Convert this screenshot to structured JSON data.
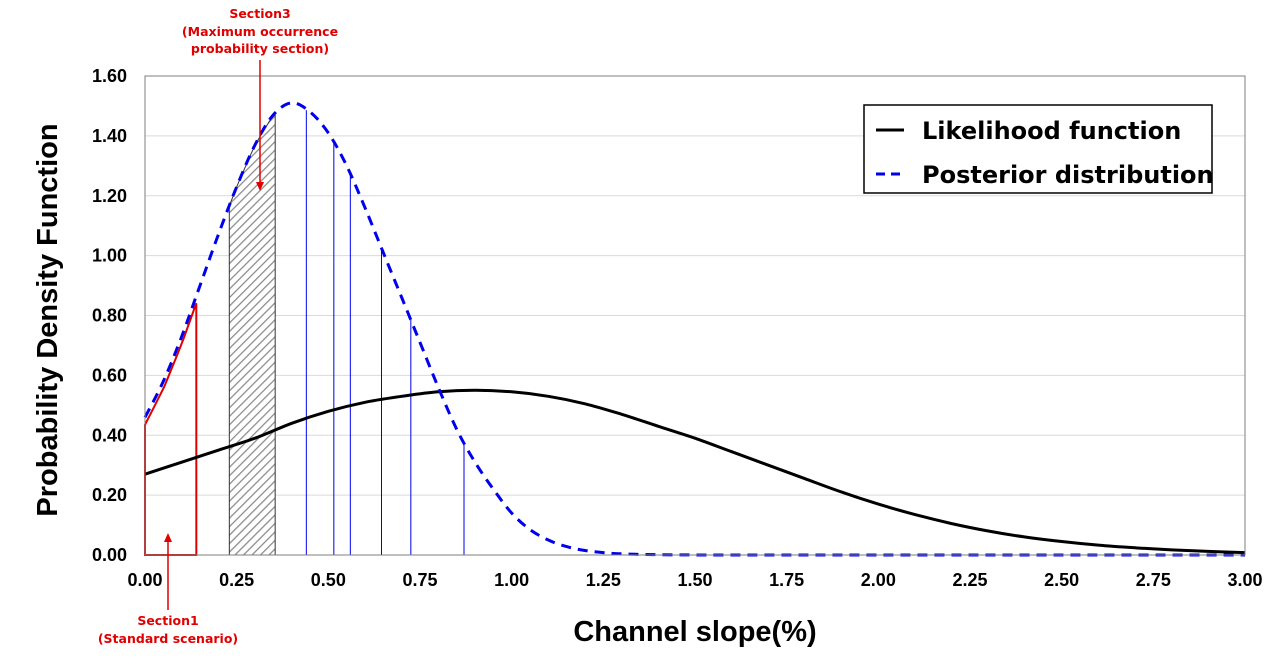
{
  "chart_data": {
    "type": "line",
    "xlabel": "Channel slope(%)",
    "ylabel": "Probability Density Function",
    "xlim": [
      0,
      3.0
    ],
    "ylim": [
      0,
      1.6
    ],
    "x_ticks": [
      "0.00",
      "0.25",
      "0.50",
      "0.75",
      "1.00",
      "1.25",
      "1.50",
      "1.75",
      "2.00",
      "2.25",
      "2.50",
      "2.75",
      "3.00"
    ],
    "y_ticks": [
      "0.00",
      "0.20",
      "0.40",
      "0.60",
      "0.80",
      "1.00",
      "1.20",
      "1.40",
      "1.60"
    ],
    "grid": "horizontal",
    "legend_position": "top-right",
    "colors": {
      "likelihood": "#000000",
      "posterior": "#0000ee",
      "annotation": "#e00000",
      "gridline": "#d9d9d9"
    },
    "series": [
      {
        "name": "Likelihood function",
        "style": "solid",
        "x": [
          0,
          0.1,
          0.2,
          0.3,
          0.4,
          0.5,
          0.6,
          0.7,
          0.8,
          0.9,
          1.0,
          1.1,
          1.2,
          1.3,
          1.4,
          1.5,
          1.6,
          1.7,
          1.8,
          1.9,
          2.0,
          2.1,
          2.2,
          2.3,
          2.4,
          2.5,
          2.6,
          2.7,
          2.8,
          2.9,
          3.0
        ],
        "values": [
          0.27,
          0.31,
          0.35,
          0.39,
          0.44,
          0.48,
          0.51,
          0.53,
          0.545,
          0.55,
          0.545,
          0.53,
          0.505,
          0.47,
          0.43,
          0.39,
          0.345,
          0.3,
          0.255,
          0.21,
          0.17,
          0.135,
          0.105,
          0.08,
          0.06,
          0.045,
          0.033,
          0.024,
          0.017,
          0.012,
          0.008
        ]
      },
      {
        "name": "Posterior distribution",
        "style": "dashed",
        "x": [
          0,
          0.05,
          0.1,
          0.15,
          0.2,
          0.25,
          0.3,
          0.35,
          0.4,
          0.45,
          0.5,
          0.55,
          0.6,
          0.65,
          0.7,
          0.75,
          0.8,
          0.85,
          0.9,
          0.95,
          1.0,
          1.05,
          1.1,
          1.15,
          1.2,
          1.25,
          1.3,
          1.4,
          1.6,
          2.0,
          2.5,
          3.0
        ],
        "values": [
          0.46,
          0.58,
          0.73,
          0.9,
          1.07,
          1.23,
          1.37,
          1.47,
          1.51,
          1.48,
          1.41,
          1.3,
          1.16,
          1.01,
          0.86,
          0.71,
          0.56,
          0.42,
          0.31,
          0.22,
          0.14,
          0.085,
          0.05,
          0.028,
          0.015,
          0.008,
          0.004,
          0.001,
          0.0,
          0.0,
          0.0,
          0.0
        ]
      }
    ],
    "sections": [
      {
        "label": "Section1",
        "sublabel": "(Standard scenario)",
        "range": [
          0.0,
          0.14
        ]
      },
      {
        "label": "Section3",
        "sublabel_lines": [
          "(Maximum occurrence",
          "probability section)"
        ],
        "range": [
          0.23,
          0.355
        ]
      }
    ],
    "vertical_markers_x": [
      0.44,
      0.515,
      0.56,
      0.645,
      0.725,
      0.87
    ]
  }
}
